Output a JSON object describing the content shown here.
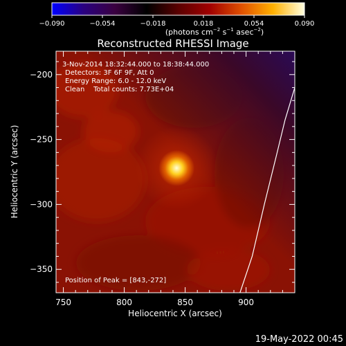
{
  "chart_data": {
    "type": "heatmap",
    "title": "Reconstructed RHESSI Image",
    "xlabel": "Heliocentric X (arcsec)",
    "ylabel": "Heliocentric Y (arcsec)",
    "xlim": [
      744,
      940
    ],
    "ylim": [
      -368,
      -182
    ],
    "xticks": [
      750,
      800,
      850,
      900
    ],
    "yticks": [
      -200,
      -250,
      -300,
      -350
    ],
    "colorbar": {
      "range": [
        -0.09,
        0.09
      ],
      "ticks": [
        "−0.090",
        "−0.054",
        "−0.018",
        "0.018",
        "0.054",
        "0.090"
      ],
      "unit_line_1": "(photons cm",
      "unit_exp_1": "−2",
      "unit_line_2": " s",
      "unit_exp_2": "−1",
      "unit_line_3": " asec",
      "unit_exp_3": "−2",
      "unit_close": ")",
      "stops": [
        "#0000ff",
        "#2a0080",
        "#3a0040",
        "#000000",
        "#5a0000",
        "#a00000",
        "#e05000",
        "#ffb000",
        "#ffffe0"
      ]
    },
    "annotations": [
      " 3-Nov-2014 18:32:44.000 to 18:38:44.000",
      "Detectors: 3F 6F 9F, Att 0",
      "Energy Range: 6.0 - 12.0 keV",
      "Clean    Total counts: 7.73E+04"
    ],
    "peak_label": "Position of Peak = [843,-272]",
    "peak": [
      843,
      -272
    ],
    "limb_curve": [
      [
        895,
        -368
      ],
      [
        905,
        -340
      ],
      [
        915,
        -300
      ],
      [
        925,
        -262
      ],
      [
        932,
        -235
      ],
      [
        940,
        -210
      ]
    ],
    "footer": "19-May-2022 00:45"
  }
}
